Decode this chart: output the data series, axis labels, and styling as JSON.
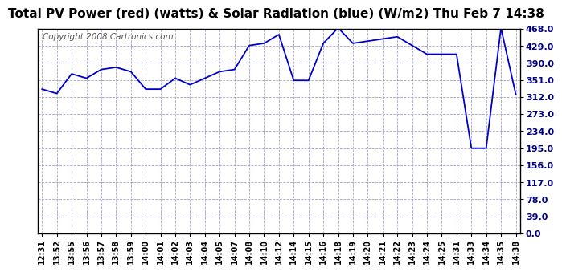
{
  "title": "Total PV Power (red) (watts) & Solar Radiation (blue) (W/m2) Thu Feb 7 14:38",
  "copyright": "Copyright 2008 Cartronics.com",
  "line_color": "#0000cc",
  "background_color": "#ffffff",
  "plot_bg_color": "#ffffff",
  "grid_color": "#9999bb",
  "yticks": [
    0.0,
    39.0,
    78.0,
    117.0,
    156.0,
    195.0,
    234.0,
    273.0,
    312.0,
    351.0,
    390.0,
    429.0,
    468.0
  ],
  "xlabels": [
    "12:31",
    "13:52",
    "13:55",
    "13:56",
    "13:57",
    "13:58",
    "13:59",
    "14:00",
    "14:01",
    "14:02",
    "14:03",
    "14:04",
    "14:05",
    "14:07",
    "14:08",
    "14:10",
    "14:12",
    "14:14",
    "14:15",
    "14:16",
    "14:18",
    "14:19",
    "14:20",
    "14:21",
    "14:22",
    "14:23",
    "14:24",
    "14:25",
    "14:31",
    "14:33",
    "14:34",
    "14:35",
    "14:38"
  ],
  "yvalues": [
    330,
    320,
    365,
    355,
    375,
    380,
    370,
    330,
    330,
    355,
    340,
    355,
    370,
    375,
    430,
    435,
    455,
    350,
    350,
    435,
    470,
    435,
    440,
    445,
    450,
    430,
    410,
    410,
    410,
    195,
    195,
    470,
    318
  ],
  "ylim": [
    0,
    468
  ],
  "title_fontsize": 11,
  "copyright_fontsize": 7.5,
  "tick_fontsize": 7,
  "ytick_fontsize": 8
}
